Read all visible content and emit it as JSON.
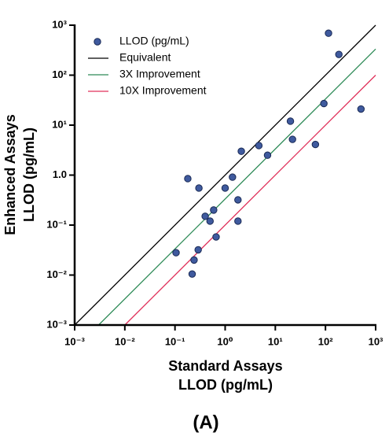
{
  "chart_data": {
    "type": "scatter",
    "title": "(A)",
    "xlabel": [
      "Standard Assays",
      "LLOD (pg/mL)"
    ],
    "ylabel": [
      "Enhanced Assays",
      "LLOD (pg/mL)"
    ],
    "xscale": "log",
    "yscale": "log",
    "xlim": [
      0.001,
      1000
    ],
    "ylim": [
      0.001,
      1000
    ],
    "xticks": [
      {
        "value": 0.001,
        "label": "10⁻³"
      },
      {
        "value": 0.01,
        "label": "10⁻²"
      },
      {
        "value": 0.1,
        "label": "10⁻¹"
      },
      {
        "value": 1,
        "label": "10⁰"
      },
      {
        "value": 10,
        "label": "10¹"
      },
      {
        "value": 100,
        "label": "10²"
      },
      {
        "value": 1000,
        "label": "10³"
      }
    ],
    "yticks": [
      {
        "value": 0.001,
        "label": "10⁻³"
      },
      {
        "value": 0.01,
        "label": "10⁻²"
      },
      {
        "value": 0.1,
        "label": "10⁻¹"
      },
      {
        "value": 1,
        "label": "1.0"
      },
      {
        "value": 10,
        "label": "10¹"
      },
      {
        "value": 100,
        "label": "10²"
      },
      {
        "value": 1000,
        "label": "10³"
      }
    ],
    "legend": "upper left",
    "series": [
      {
        "name": "LLOD (pg/mL)",
        "color": "#3f5a9e",
        "x": [
          115,
          185,
          510,
          93,
          20,
          22,
          63,
          4.7,
          7,
          2.1,
          1.4,
          1.0,
          0.18,
          0.3,
          1.8,
          0.59,
          0.4,
          0.5,
          1.8,
          0.66,
          0.29,
          0.105,
          0.24,
          0.22
        ],
        "values": [
          690,
          260,
          21,
          27,
          12,
          5.2,
          4.1,
          3.9,
          2.5,
          3.0,
          0.91,
          0.55,
          0.85,
          0.55,
          0.32,
          0.2,
          0.15,
          0.12,
          0.12,
          0.058,
          0.032,
          0.028,
          0.02,
          0.0105
        ]
      },
      {
        "name": "Equivalent",
        "color": "#000000",
        "kind": "line",
        "x": [
          0.001,
          1000
        ],
        "values": [
          0.001,
          1000
        ]
      },
      {
        "name": "3X Improvement",
        "color": "#2e8b57",
        "kind": "line",
        "x": [
          0.003,
          1000
        ],
        "values": [
          0.001,
          333
        ]
      },
      {
        "name": "10X Improvement",
        "color": "#e0305a",
        "kind": "line",
        "x": [
          0.01,
          1000
        ],
        "values": [
          0.001,
          100
        ]
      }
    ]
  }
}
